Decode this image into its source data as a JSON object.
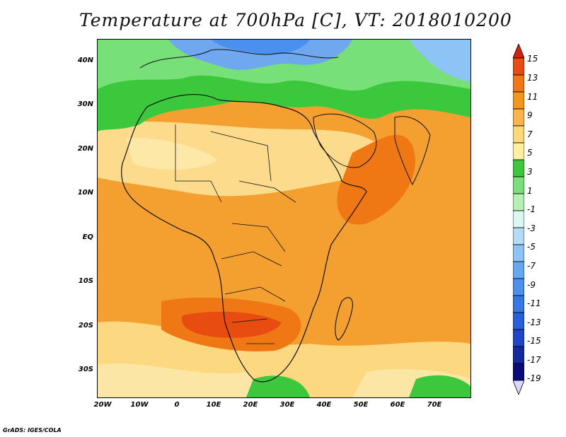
{
  "title": "Temperature at 700hPa [C], VT: 2018010200",
  "credit": "GrADS: IGES/COLA",
  "lat_labels": [
    "40N",
    "30N",
    "20N",
    "10N",
    "EQ",
    "10S",
    "20S",
    "30S"
  ],
  "lon_labels": [
    "20W",
    "10W",
    "0",
    "10E",
    "20E",
    "30E",
    "40E",
    "50E",
    "60E",
    "70E"
  ],
  "colorbar": {
    "labels": [
      "15",
      "13",
      "11",
      "9",
      "7",
      "5",
      "3",
      "1",
      "-1",
      "-3",
      "-5",
      "-7",
      "-9",
      "-11",
      "-13",
      "-15",
      "-17",
      "-19"
    ],
    "colors": [
      "#d8d8ff",
      "#0a0a78",
      "#1428a0",
      "#1e46c8",
      "#2860dc",
      "#3478e6",
      "#4a90ee",
      "#64a8f2",
      "#8cc4f6",
      "#b4dcf8",
      "#dcf6f4",
      "#b4f0b4",
      "#78e078",
      "#3cc83c",
      "#fff0a0",
      "#fcd878",
      "#f8b44a",
      "#f4961e",
      "#f07814",
      "#e84c10",
      "#d82008"
    ]
  },
  "map_colors": {
    "cold_blue": "#6fa8ee",
    "cool_green": "#3cc83c",
    "mild_green": "#78e078",
    "pale_yellow": "#fcdc8c",
    "light_orange": "#f8b44a",
    "orange": "#f4961e",
    "hot_orange": "#f07814",
    "red": "#e84c10"
  }
}
